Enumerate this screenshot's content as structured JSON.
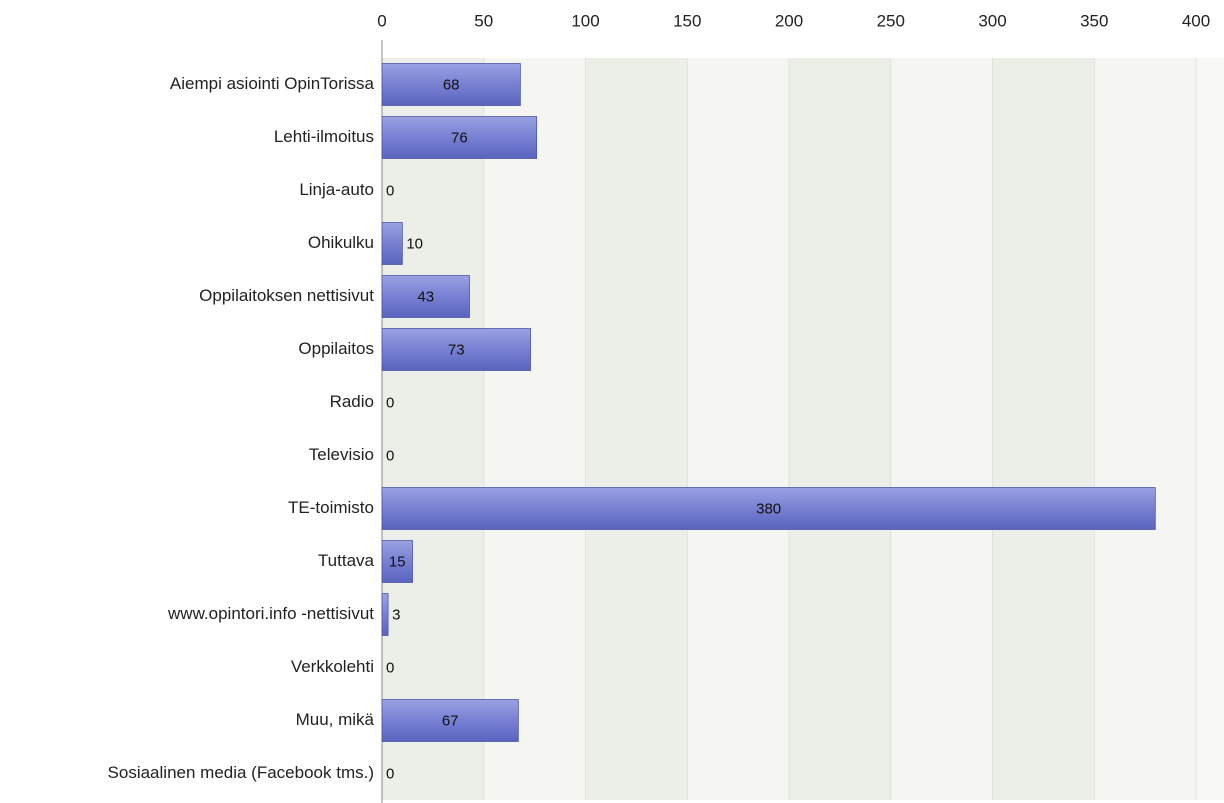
{
  "chart_data": {
    "type": "bar",
    "categories": [
      "Aiempi asiointi OpinTorissa",
      "Lehti-ilmoitus",
      "Linja-auto",
      "Ohikulku",
      "Oppilaitoksen nettisivut",
      "Oppilaitos",
      "Radio",
      "Televisio",
      "TE-toimisto",
      "Tuttava",
      "www.opintori.info -nettisivut",
      "Verkkolehti",
      "Muu, mikä",
      "Sosiaalinen media (Facebook tms.)"
    ],
    "values": [
      68,
      76,
      0,
      10,
      43,
      73,
      0,
      0,
      380,
      15,
      3,
      0,
      67,
      0
    ],
    "color": "#6f79cc",
    "xlim": [
      0,
      400
    ],
    "xticks": [
      0,
      50,
      100,
      150,
      200,
      250,
      300,
      350,
      400
    ],
    "grid": true
  }
}
